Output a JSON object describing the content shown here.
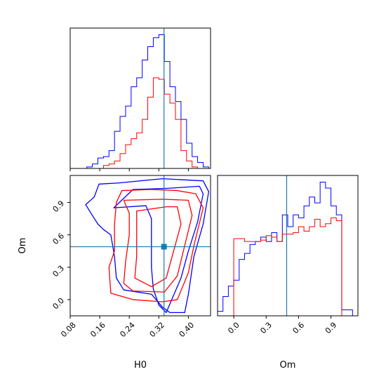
{
  "chart_data": [
    {
      "type": "histogram",
      "panel": "H0 marginal",
      "xlabel": "",
      "xlim": [
        0.08,
        0.46
      ],
      "truth": 0.334,
      "bins": [
        0.08,
        0.095,
        0.11,
        0.125,
        0.14,
        0.155,
        0.17,
        0.185,
        0.2,
        0.215,
        0.23,
        0.245,
        0.26,
        0.275,
        0.29,
        0.305,
        0.32,
        0.335,
        0.35,
        0.365,
        0.38,
        0.395,
        0.41,
        0.425,
        0.44,
        0.455
      ],
      "series": [
        {
          "color": "#0000ff",
          "counts": [
            0,
            0,
            0,
            0.01,
            0.03,
            0.07,
            0.08,
            0.12,
            0.25,
            0.35,
            0.42,
            0.55,
            0.61,
            0.73,
            0.82,
            0.88,
            0.9,
            0.72,
            0.55,
            0.45,
            0.33,
            0.17,
            0.08,
            0.04,
            0.01
          ]
        },
        {
          "color": "#ff0000",
          "counts": [
            0,
            0,
            0,
            0,
            0,
            0,
            0.02,
            0.03,
            0.05,
            0.1,
            0.16,
            0.2,
            0.24,
            0.33,
            0.48,
            0.61,
            0.6,
            0.5,
            0.44,
            0.33,
            0.12,
            0.05,
            0.01,
            0,
            0
          ]
        }
      ]
    },
    {
      "type": "contour",
      "panel": "Om vs H0",
      "xlabel": "H0",
      "ylabel": "Om",
      "xlim": [
        0.08,
        0.46
      ],
      "ylim": [
        -0.15,
        1.15
      ],
      "xticks": [
        "0.08",
        "0.16",
        "0.24",
        "0.32",
        "0.40"
      ],
      "yticks": [
        "0.0",
        "0.3",
        "0.6",
        "0.9"
      ],
      "truth": {
        "x": 0.334,
        "y": 0.49
      },
      "series": [
        {
          "color": "#0000ff",
          "contours": [
            [
              [
                0.122,
                0.88
              ],
              [
                0.145,
                0.95
              ],
              [
                0.158,
                1.07
              ],
              [
                0.21,
                1.08
              ],
              [
                0.33,
                1.12
              ],
              [
                0.44,
                1.1
              ],
              [
                0.455,
                1.0
              ],
              [
                0.44,
                0.7
              ],
              [
                0.415,
                0.4
              ],
              [
                0.4,
                0.05
              ],
              [
                0.39,
                -0.12
              ],
              [
                0.35,
                -0.12
              ],
              [
                0.33,
                -0.07
              ],
              [
                0.3,
                0.05
              ],
              [
                0.225,
                0.09
              ],
              [
                0.205,
                0.2
              ],
              [
                0.2,
                0.4
              ],
              [
                0.19,
                0.6
              ],
              [
                0.17,
                0.65
              ],
              [
                0.155,
                0.7
              ],
              [
                0.14,
                0.78
              ],
              [
                0.122,
                0.88
              ]
            ],
            [
              [
                0.198,
                0.85
              ],
              [
                0.25,
                1.02
              ],
              [
                0.34,
                1.03
              ],
              [
                0.43,
                1.05
              ],
              [
                0.44,
                0.98
              ],
              [
                0.425,
                0.72
              ],
              [
                0.4,
                0.45
              ],
              [
                0.38,
                0.2
              ],
              [
                0.36,
                0.04
              ],
              [
                0.34,
                -0.12
              ],
              [
                0.32,
                -0.05
              ],
              [
                0.305,
                0.1
              ],
              [
                0.3,
                0.3
              ],
              [
                0.3,
                0.6
              ],
              [
                0.3,
                0.75
              ],
              [
                0.285,
                0.87
              ],
              [
                0.198,
                0.85
              ]
            ]
          ]
        },
        {
          "color": "#ff0000",
          "contours": [
            [
              [
                0.22,
                1.01
              ],
              [
                0.3,
                1.02
              ],
              [
                0.37,
                1.01
              ],
              [
                0.42,
                0.98
              ],
              [
                0.44,
                0.85
              ],
              [
                0.415,
                0.5
              ],
              [
                0.4,
                0.25
              ],
              [
                0.37,
                0.0
              ],
              [
                0.33,
                -0.02
              ],
              [
                0.25,
                0.0
              ],
              [
                0.19,
                0.06
              ],
              [
                0.185,
                0.3
              ],
              [
                0.2,
                0.45
              ],
              [
                0.2,
                0.7
              ],
              [
                0.205,
                0.9
              ],
              [
                0.22,
                1.01
              ]
            ],
            [
              [
                0.225,
                0.92
              ],
              [
                0.33,
                0.93
              ],
              [
                0.4,
                0.92
              ],
              [
                0.41,
                0.78
              ],
              [
                0.39,
                0.5
              ],
              [
                0.37,
                0.22
              ],
              [
                0.335,
                0.07
              ],
              [
                0.25,
                0.08
              ],
              [
                0.225,
                0.15
              ],
              [
                0.23,
                0.35
              ],
              [
                0.24,
                0.6
              ],
              [
                0.24,
                0.8
              ],
              [
                0.225,
                0.92
              ]
            ],
            [
              [
                0.26,
                0.82
              ],
              [
                0.34,
                0.86
              ],
              [
                0.37,
                0.86
              ],
              [
                0.38,
                0.7
              ],
              [
                0.36,
                0.45
              ],
              [
                0.34,
                0.2
              ],
              [
                0.3,
                0.12
              ],
              [
                0.255,
                0.2
              ],
              [
                0.26,
                0.4
              ],
              [
                0.26,
                0.6
              ],
              [
                0.26,
                0.82
              ]
            ]
          ]
        }
      ]
    },
    {
      "type": "histogram",
      "panel": "Om marginal",
      "xlabel": "Om",
      "xlim": [
        -0.15,
        1.15
      ],
      "xticks": [
        "0.0",
        "0.3",
        "0.6",
        "0.9"
      ],
      "truth": 0.49,
      "bins": [
        -0.15,
        -0.1,
        -0.05,
        0.0,
        0.05,
        0.1,
        0.15,
        0.2,
        0.25,
        0.3,
        0.35,
        0.4,
        0.45,
        0.5,
        0.55,
        0.6,
        0.65,
        0.7,
        0.75,
        0.8,
        0.85,
        0.9,
        0.95,
        1.0,
        1.05,
        1.1,
        1.15
      ],
      "series": [
        {
          "color": "#0000ff",
          "counts": [
            0.03,
            0.13,
            0.2,
            0.24,
            0.38,
            0.42,
            0.48,
            0.5,
            0.53,
            0.5,
            0.56,
            0.5,
            0.68,
            0.6,
            0.68,
            0.66,
            0.74,
            0.8,
            0.76,
            0.9,
            0.86,
            0.74,
            0.68,
            0.04,
            0.04,
            0.0
          ]
        },
        {
          "color": "#ff0000",
          "counts": [
            0,
            0,
            0,
            0.52,
            0.52,
            0.5,
            0.5,
            0.5,
            0.51,
            0.54,
            0.53,
            0.5,
            0.55,
            0.55,
            0.56,
            0.6,
            0.57,
            0.6,
            0.65,
            0.6,
            0.62,
            0.66,
            0.64,
            0,
            0,
            0
          ]
        }
      ]
    }
  ]
}
